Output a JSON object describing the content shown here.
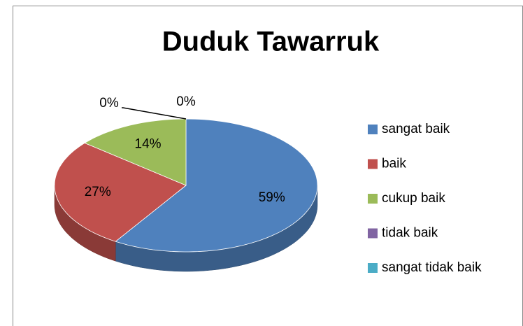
{
  "chart_data": {
    "type": "pie",
    "title": "Duduk Tawarruk",
    "categories": [
      "sangat baik",
      "baik",
      "cukup baik",
      "tidak baik",
      "sangat tidak baik"
    ],
    "values": [
      59,
      27,
      14,
      0,
      0
    ],
    "value_labels": [
      "59%",
      "27%",
      "14%",
      "0%",
      "0%"
    ],
    "colors": [
      "#4f81bd",
      "#c0504d",
      "#9bbb59",
      "#8064a2",
      "#4bacc6"
    ],
    "legend": "right"
  }
}
